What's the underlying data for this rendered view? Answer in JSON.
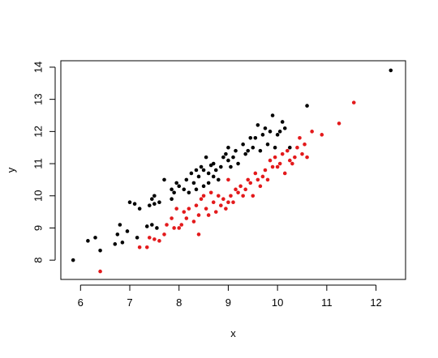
{
  "chart_data": {
    "type": "scatter",
    "title": "",
    "xlabel": "x",
    "ylabel": "y",
    "xlim": [
      5.6,
      12.6
    ],
    "ylim": [
      7.4,
      14.2
    ],
    "xticks": [
      6,
      7,
      8,
      9,
      10,
      11,
      12
    ],
    "yticks": [
      8,
      9,
      10,
      11,
      12,
      13,
      14
    ],
    "grid": false,
    "legend": "none",
    "series": [
      {
        "color": "#000000",
        "points": [
          [
            5.85,
            8.0
          ],
          [
            6.15,
            8.6
          ],
          [
            6.3,
            8.7
          ],
          [
            6.4,
            8.3
          ],
          [
            6.7,
            8.5
          ],
          [
            6.75,
            8.8
          ],
          [
            6.8,
            9.1
          ],
          [
            6.85,
            8.55
          ],
          [
            6.95,
            8.9
          ],
          [
            7.0,
            9.8
          ],
          [
            7.1,
            9.75
          ],
          [
            7.15,
            8.7
          ],
          [
            7.2,
            9.6
          ],
          [
            7.35,
            9.05
          ],
          [
            7.4,
            9.7
          ],
          [
            7.45,
            9.9
          ],
          [
            7.45,
            9.1
          ],
          [
            7.5,
            9.75
          ],
          [
            7.5,
            10.0
          ],
          [
            7.55,
            9.0
          ],
          [
            7.6,
            9.8
          ],
          [
            7.7,
            10.5
          ],
          [
            7.85,
            9.9
          ],
          [
            7.85,
            10.2
          ],
          [
            7.9,
            10.1
          ],
          [
            7.95,
            10.4
          ],
          [
            8.0,
            10.3
          ],
          [
            8.1,
            10.2
          ],
          [
            8.15,
            10.5
          ],
          [
            8.2,
            10.1
          ],
          [
            8.25,
            10.7
          ],
          [
            8.3,
            10.4
          ],
          [
            8.35,
            10.2
          ],
          [
            8.35,
            10.8
          ],
          [
            8.4,
            10.6
          ],
          [
            8.45,
            10.9
          ],
          [
            8.5,
            10.3
          ],
          [
            8.5,
            10.8
          ],
          [
            8.55,
            11.2
          ],
          [
            8.6,
            10.4
          ],
          [
            8.6,
            10.7
          ],
          [
            8.65,
            10.95
          ],
          [
            8.7,
            11.0
          ],
          [
            8.7,
            10.6
          ],
          [
            8.75,
            10.8
          ],
          [
            8.8,
            10.5
          ],
          [
            8.85,
            10.9
          ],
          [
            8.9,
            11.2
          ],
          [
            8.95,
            11.3
          ],
          [
            9.0,
            11.5
          ],
          [
            9.0,
            11.1
          ],
          [
            9.05,
            10.9
          ],
          [
            9.1,
            11.2
          ],
          [
            9.15,
            11.4
          ],
          [
            9.2,
            11.0
          ],
          [
            9.3,
            11.6
          ],
          [
            9.35,
            11.3
          ],
          [
            9.4,
            11.4
          ],
          [
            9.45,
            11.8
          ],
          [
            9.5,
            11.5
          ],
          [
            9.55,
            11.8
          ],
          [
            9.6,
            12.2
          ],
          [
            9.65,
            11.4
          ],
          [
            9.7,
            11.9
          ],
          [
            9.75,
            12.1
          ],
          [
            9.8,
            11.6
          ],
          [
            9.85,
            12.0
          ],
          [
            9.9,
            12.5
          ],
          [
            9.95,
            11.5
          ],
          [
            10.0,
            11.9
          ],
          [
            10.05,
            12.0
          ],
          [
            10.1,
            12.3
          ],
          [
            10.15,
            12.1
          ],
          [
            10.25,
            11.5
          ],
          [
            10.6,
            12.8
          ],
          [
            12.3,
            13.9
          ]
        ]
      },
      {
        "color": "#e31a1c",
        "points": [
          [
            6.4,
            7.65
          ],
          [
            7.2,
            8.4
          ],
          [
            7.35,
            8.4
          ],
          [
            7.4,
            8.7
          ],
          [
            7.5,
            8.65
          ],
          [
            7.6,
            8.6
          ],
          [
            7.7,
            8.8
          ],
          [
            7.75,
            9.1
          ],
          [
            7.85,
            9.3
          ],
          [
            7.9,
            9.0
          ],
          [
            7.95,
            9.6
          ],
          [
            8.0,
            9.0
          ],
          [
            8.05,
            9.1
          ],
          [
            8.1,
            9.5
          ],
          [
            8.15,
            9.3
          ],
          [
            8.2,
            9.6
          ],
          [
            8.3,
            9.2
          ],
          [
            8.35,
            9.7
          ],
          [
            8.4,
            8.8
          ],
          [
            8.4,
            9.4
          ],
          [
            8.45,
            9.9
          ],
          [
            8.5,
            10.0
          ],
          [
            8.55,
            9.6
          ],
          [
            8.6,
            9.4
          ],
          [
            8.65,
            10.1
          ],
          [
            8.7,
            9.8
          ],
          [
            8.75,
            9.5
          ],
          [
            8.8,
            10.0
          ],
          [
            8.85,
            9.7
          ],
          [
            8.9,
            9.9
          ],
          [
            8.95,
            9.6
          ],
          [
            9.0,
            9.8
          ],
          [
            9.0,
            10.5
          ],
          [
            9.05,
            10.0
          ],
          [
            9.1,
            9.8
          ],
          [
            9.15,
            10.2
          ],
          [
            9.2,
            10.1
          ],
          [
            9.25,
            10.3
          ],
          [
            9.3,
            10.0
          ],
          [
            9.35,
            10.2
          ],
          [
            9.4,
            10.5
          ],
          [
            9.45,
            10.4
          ],
          [
            9.5,
            10.0
          ],
          [
            9.55,
            10.7
          ],
          [
            9.6,
            10.5
          ],
          [
            9.65,
            10.3
          ],
          [
            9.7,
            10.6
          ],
          [
            9.75,
            10.8
          ],
          [
            9.8,
            10.5
          ],
          [
            9.85,
            11.1
          ],
          [
            9.9,
            10.9
          ],
          [
            9.95,
            11.2
          ],
          [
            10.0,
            10.9
          ],
          [
            10.05,
            11.0
          ],
          [
            10.1,
            11.3
          ],
          [
            10.15,
            10.7
          ],
          [
            10.2,
            11.4
          ],
          [
            10.25,
            11.1
          ],
          [
            10.3,
            11.0
          ],
          [
            10.35,
            11.2
          ],
          [
            10.4,
            11.5
          ],
          [
            10.45,
            11.8
          ],
          [
            10.5,
            11.3
          ],
          [
            10.55,
            11.6
          ],
          [
            10.6,
            11.2
          ],
          [
            10.7,
            12.0
          ],
          [
            10.9,
            11.9
          ],
          [
            11.25,
            12.25
          ],
          [
            11.55,
            12.9
          ]
        ]
      }
    ]
  }
}
